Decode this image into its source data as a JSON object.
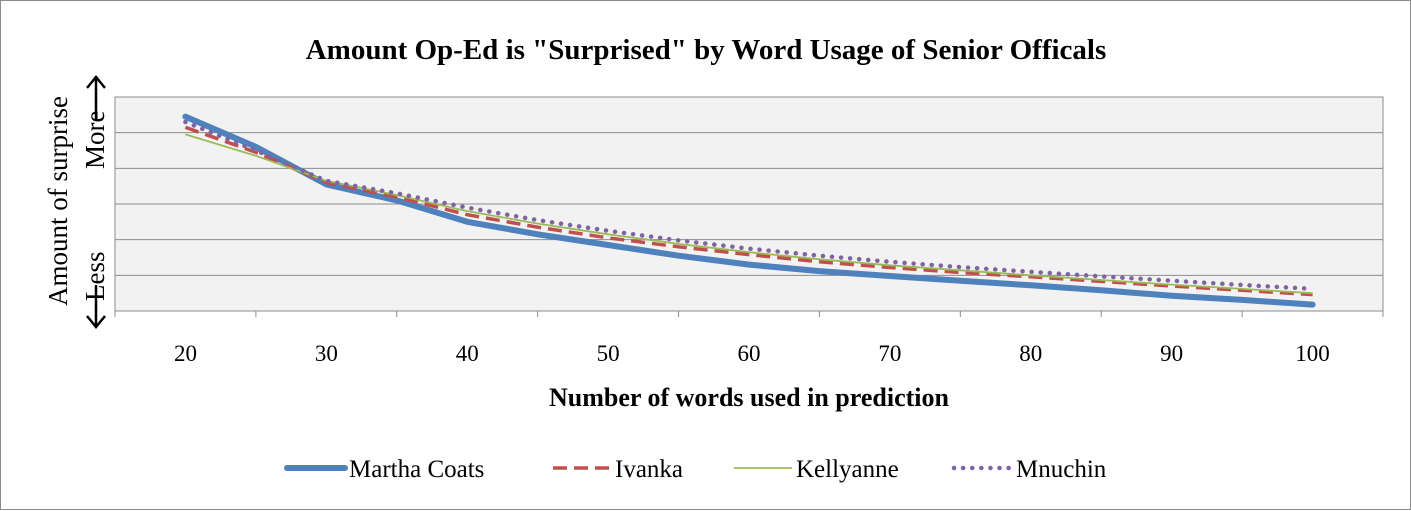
{
  "chart_data": {
    "type": "line",
    "title": "Amount Op-Ed is \"Surprised\" by Word Usage of Senior Officals",
    "xlabel": "Number of words used in prediction",
    "ylabel": {
      "main": "Amount of surprise",
      "more": "More",
      "less": "Less"
    },
    "x": [
      20,
      25,
      30,
      35,
      40,
      45,
      50,
      55,
      60,
      65,
      70,
      75,
      80,
      85,
      90,
      95,
      100
    ],
    "x_ticks": [
      "20",
      "30",
      "40",
      "50",
      "60",
      "70",
      "80",
      "90",
      "100"
    ],
    "ylim": [
      0,
      6
    ],
    "grid": true,
    "legend_position": "bottom",
    "series": [
      {
        "name": "Martha Coats",
        "color": "#4f81bd",
        "style": "solid-thick",
        "values": [
          5.45,
          4.6,
          3.55,
          3.1,
          2.5,
          2.15,
          1.85,
          1.55,
          1.3,
          1.12,
          0.98,
          0.85,
          0.72,
          0.58,
          0.43,
          0.31,
          0.18
        ]
      },
      {
        "name": "Ivanka",
        "color": "#c0504d",
        "style": "dashed",
        "values": [
          5.15,
          4.45,
          3.6,
          3.2,
          2.7,
          2.35,
          2.05,
          1.8,
          1.58,
          1.38,
          1.22,
          1.08,
          0.96,
          0.83,
          0.7,
          0.58,
          0.46
        ]
      },
      {
        "name": "Kellyanne",
        "color": "#9bbb59",
        "style": "thin",
        "values": [
          4.95,
          4.35,
          3.65,
          3.25,
          2.8,
          2.45,
          2.15,
          1.88,
          1.65,
          1.45,
          1.28,
          1.14,
          1.0,
          0.87,
          0.74,
          0.62,
          0.5
        ]
      },
      {
        "name": "Mnuchin",
        "color": "#8064a2",
        "style": "dotted",
        "values": [
          5.3,
          4.5,
          3.65,
          3.3,
          2.9,
          2.55,
          2.25,
          1.98,
          1.75,
          1.55,
          1.38,
          1.23,
          1.1,
          0.97,
          0.85,
          0.73,
          0.62
        ]
      }
    ]
  }
}
